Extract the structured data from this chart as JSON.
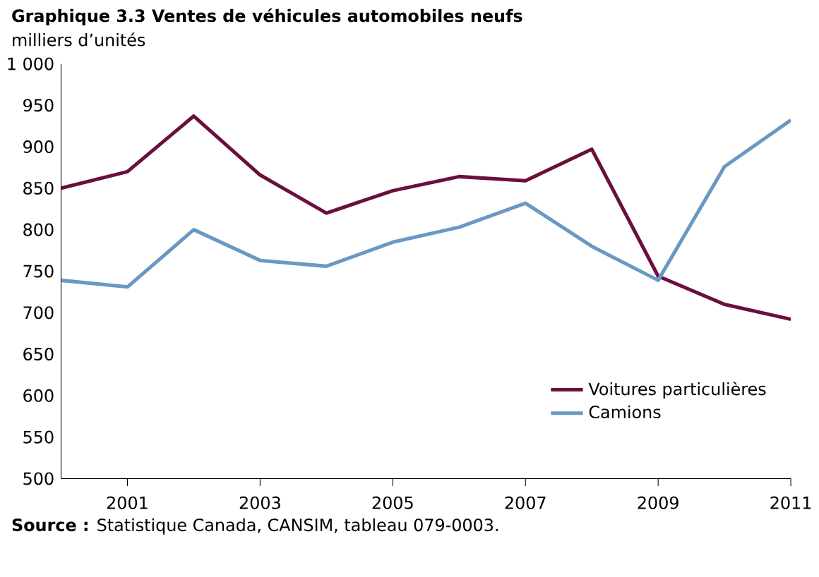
{
  "chart_data": {
    "type": "line",
    "title": "**Graphique 3.3  Ventes de véhicules automobiles neufs**",
    "ylabel": "milliers d’unités",
    "x": [
      2000,
      2001,
      2002,
      2003,
      2004,
      2005,
      2006,
      2007,
      2008,
      2009,
      2010,
      2011
    ],
    "series": [
      {
        "name": "Voitures particulières",
        "color": "#6b0f3c",
        "values": [
          850,
          870,
          937,
          866,
          820,
          847,
          864,
          859,
          897,
          744,
          710,
          692
        ]
      },
      {
        "name": "Camions",
        "color": "#6a98c4",
        "values": [
          739,
          731,
          800,
          763,
          756,
          785,
          803,
          832,
          780,
          739,
          876,
          932
        ]
      }
    ],
    "xlim": [
      2000,
      2011
    ],
    "xticks": [
      2001,
      2003,
      2005,
      2007,
      2009,
      2011
    ],
    "ylim": [
      500,
      1000
    ],
    "yticks": [
      500,
      550,
      600,
      650,
      700,
      750,
      800,
      850,
      900,
      950,
      {
        "value": 1000,
        "label": "1 000"
      }
    ],
    "legend": "bottom right",
    "annotations": [
      "**Source :** Statistique Canada, CANSIM, tableau 079-0003."
    ]
  }
}
